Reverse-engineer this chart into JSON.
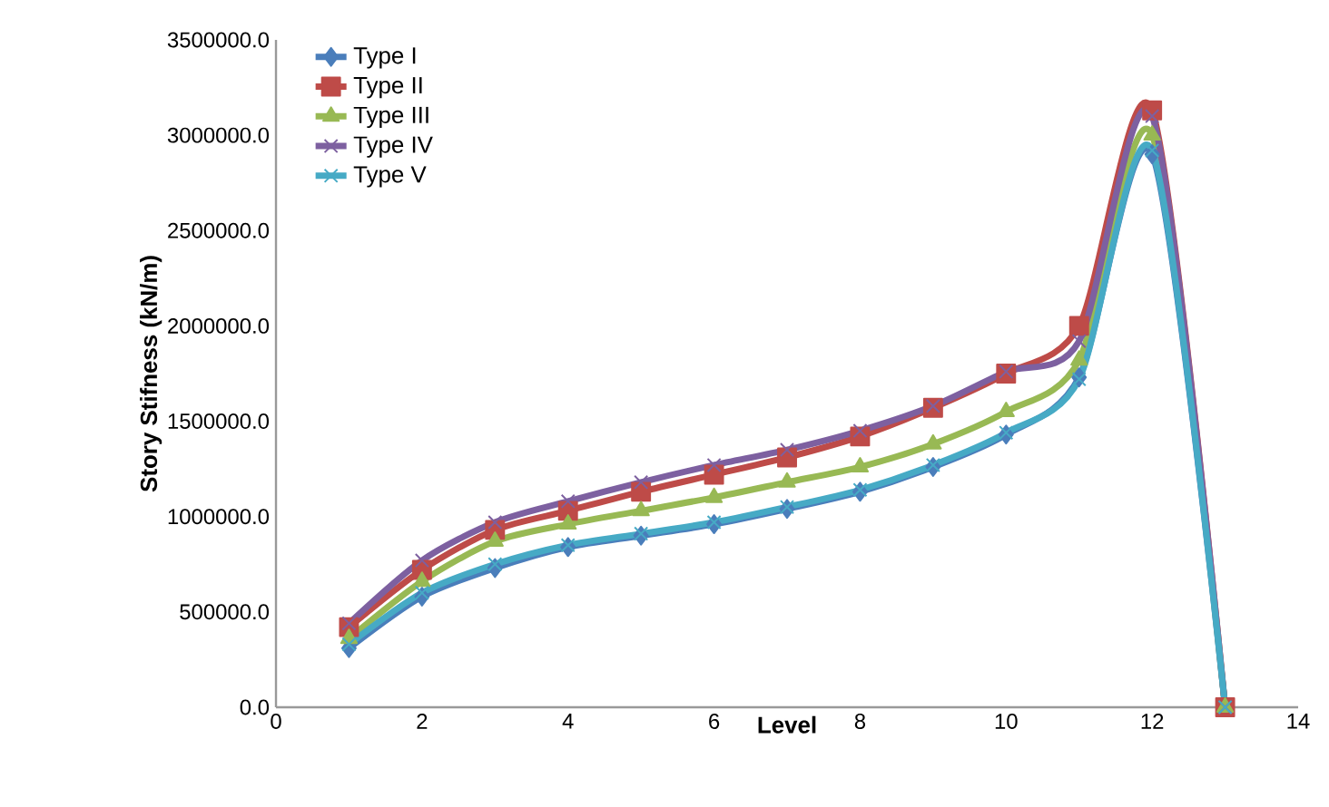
{
  "chart_data": {
    "type": "line",
    "xlabel": "Level",
    "ylabel": "Story Stifness (kN/m)",
    "x": [
      1,
      2,
      3,
      4,
      5,
      6,
      7,
      8,
      9,
      10,
      11,
      12,
      13
    ],
    "xlim": [
      0,
      14
    ],
    "xticks": [
      0,
      2,
      4,
      6,
      8,
      10,
      12,
      14
    ],
    "ylim": [
      0,
      3500000
    ],
    "yticks": [
      {
        "value": 0,
        "label": "0.0"
      },
      {
        "value": 500000,
        "label": "500000.0"
      },
      {
        "value": 1000000,
        "label": "1000000.0"
      },
      {
        "value": 1500000,
        "label": "1500000.0"
      },
      {
        "value": 2000000,
        "label": "2000000.0"
      },
      {
        "value": 2500000,
        "label": "2500000.0"
      },
      {
        "value": 3000000,
        "label": "3000000.0"
      },
      {
        "value": 3500000,
        "label": "3500000.0"
      }
    ],
    "grid": false,
    "legend": "top left",
    "series": [
      {
        "name": "Type I",
        "color": "#4a7ebb",
        "marker": "diamond",
        "values": [
          310000,
          580000,
          730000,
          840000,
          900000,
          960000,
          1040000,
          1130000,
          1260000,
          1430000,
          1730000,
          2900000,
          0
        ]
      },
      {
        "name": "Type II",
        "color": "#be4b48",
        "marker": "square",
        "values": [
          420000,
          720000,
          930000,
          1030000,
          1130000,
          1220000,
          1310000,
          1420000,
          1570000,
          1750000,
          2000000,
          3130000,
          0
        ]
      },
      {
        "name": "Type III",
        "color": "#98b954",
        "marker": "triangle",
        "values": [
          360000,
          660000,
          870000,
          960000,
          1030000,
          1100000,
          1180000,
          1260000,
          1380000,
          1550000,
          1820000,
          3000000,
          0
        ]
      },
      {
        "name": "Type IV",
        "color": "#7d60a0",
        "marker": "cross",
        "values": [
          440000,
          770000,
          970000,
          1080000,
          1180000,
          1270000,
          1350000,
          1450000,
          1580000,
          1760000,
          1920000,
          3100000,
          0
        ]
      },
      {
        "name": "Type V",
        "color": "#46aac5",
        "marker": "cross",
        "values": [
          330000,
          600000,
          750000,
          850000,
          910000,
          970000,
          1050000,
          1140000,
          1270000,
          1440000,
          1720000,
          2920000,
          0
        ]
      }
    ]
  }
}
